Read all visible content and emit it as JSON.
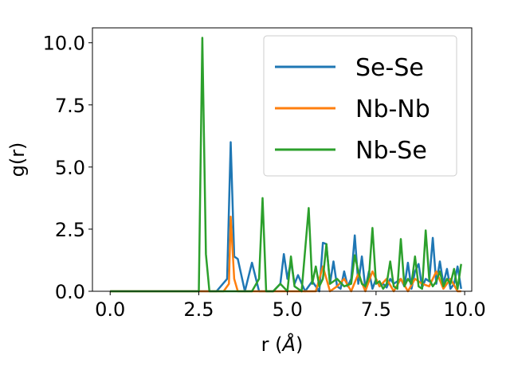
{
  "chart_data": {
    "type": "line",
    "xlabel_prefix": "r (",
    "xlabel_unit": "Å",
    "xlabel_suffix": ")",
    "ylabel": "g(r)",
    "xlim": [
      -0.5,
      10.2
    ],
    "ylim": [
      0,
      10.6
    ],
    "x_ticks": [
      0.0,
      2.5,
      5.0,
      7.5,
      10.0
    ],
    "x_tick_labels": [
      "0.0",
      "2.5",
      "5.0",
      "7.5",
      "10.0"
    ],
    "y_ticks": [
      0.0,
      2.5,
      5.0,
      7.5,
      10.0
    ],
    "y_tick_labels": [
      "0.0",
      "2.5",
      "5.0",
      "7.5",
      "10.0"
    ],
    "grid": false,
    "legend_position": "top-right",
    "series": [
      {
        "name": "Se-Se",
        "color": "#1f77b4",
        "x": [
          0,
          1,
          2,
          2.4,
          2.6,
          2.8,
          3.0,
          3.3,
          3.4,
          3.5,
          3.6,
          3.8,
          4.0,
          4.2,
          4.4,
          4.6,
          4.8,
          4.9,
          5.0,
          5.1,
          5.2,
          5.3,
          5.5,
          5.7,
          5.9,
          6.0,
          6.1,
          6.2,
          6.3,
          6.4,
          6.5,
          6.6,
          6.7,
          6.8,
          6.9,
          7.0,
          7.1,
          7.2,
          7.3,
          7.4,
          7.5,
          7.6,
          7.7,
          7.8,
          7.9,
          8.0,
          8.1,
          8.2,
          8.3,
          8.4,
          8.5,
          8.6,
          8.7,
          8.8,
          8.9,
          9.0,
          9.1,
          9.2,
          9.3,
          9.4,
          9.5,
          9.6,
          9.7,
          9.8,
          9.9
        ],
        "y": [
          0,
          0,
          0,
          0,
          0,
          0,
          0,
          0.5,
          6.0,
          1.4,
          1.3,
          0,
          1.15,
          0,
          0,
          0,
          0.3,
          1.5,
          0.5,
          1.2,
          0.3,
          0.65,
          0,
          0.4,
          0,
          1.95,
          1.9,
          0.3,
          1.2,
          0.2,
          0.1,
          0.8,
          0.2,
          0.5,
          2.25,
          0.3,
          1.4,
          0.1,
          0.8,
          0.1,
          0.5,
          0.2,
          0.3,
          0.15,
          0.5,
          0.3,
          0.4,
          0.5,
          0.2,
          1.15,
          0.1,
          0.8,
          1.1,
          0.15,
          0.5,
          0.4,
          2.15,
          0.3,
          1.2,
          0.3,
          0.9,
          0.1,
          0.3,
          1.0,
          0.1
        ]
      },
      {
        "name": "Nb-Nb",
        "color": "#ff7f0e",
        "x": [
          0,
          1,
          2,
          3.0,
          3.2,
          3.35,
          3.4,
          3.5,
          3.6,
          4,
          5,
          5.8,
          6.0,
          6.2,
          6.4,
          6.6,
          6.8,
          7.0,
          7.2,
          7.4,
          7.6,
          7.8,
          8.0,
          8.2,
          8.4,
          8.6,
          8.8,
          9.0,
          9.2,
          9.4,
          9.6,
          9.8,
          9.9
        ],
        "y": [
          0,
          0,
          0,
          0,
          0,
          0.3,
          3.0,
          0.5,
          0,
          0,
          0,
          0,
          1.0,
          0,
          0.2,
          0.5,
          0,
          0.7,
          0,
          0.8,
          0.2,
          0.5,
          0,
          0.5,
          0,
          0.5,
          0.3,
          0.2,
          0.8,
          0.1,
          0.5,
          0,
          0
        ]
      },
      {
        "name": "Nb-Se",
        "color": "#2ca02c",
        "x": [
          0,
          1,
          2,
          2.4,
          2.5,
          2.6,
          2.7,
          2.8,
          3.0,
          3.2,
          3.4,
          3.6,
          3.8,
          4.0,
          4.2,
          4.3,
          4.4,
          4.6,
          4.8,
          5.0,
          5.1,
          5.2,
          5.4,
          5.6,
          5.7,
          5.8,
          5.9,
          6.0,
          6.1,
          6.2,
          6.4,
          6.6,
          6.8,
          6.9,
          7.0,
          7.1,
          7.2,
          7.3,
          7.4,
          7.5,
          7.6,
          7.7,
          7.8,
          7.9,
          8.0,
          8.1,
          8.2,
          8.3,
          8.4,
          8.5,
          8.6,
          8.7,
          8.8,
          8.9,
          9.0,
          9.1,
          9.2,
          9.3,
          9.4,
          9.5,
          9.6,
          9.7,
          9.8,
          9.9
        ],
        "y": [
          0,
          0,
          0,
          0,
          0,
          10.2,
          1.5,
          0,
          0,
          0,
          0,
          0,
          0,
          0,
          0.5,
          3.75,
          0,
          0,
          0.3,
          0,
          1.4,
          0.2,
          0,
          3.35,
          0.3,
          1.0,
          0.2,
          0.5,
          1.9,
          0.3,
          0.5,
          0.2,
          0.3,
          1.45,
          0.8,
          0.3,
          0.2,
          0.6,
          2.55,
          0.3,
          0.4,
          0.1,
          0.3,
          1.2,
          0.2,
          0.1,
          2.1,
          0.2,
          0.5,
          0.3,
          1.4,
          0.2,
          0.1,
          2.45,
          0.5,
          0.2,
          0.4,
          0.8,
          0.2,
          0.5,
          0.3,
          0.9,
          0.1,
          1.1
        ]
      }
    ]
  }
}
